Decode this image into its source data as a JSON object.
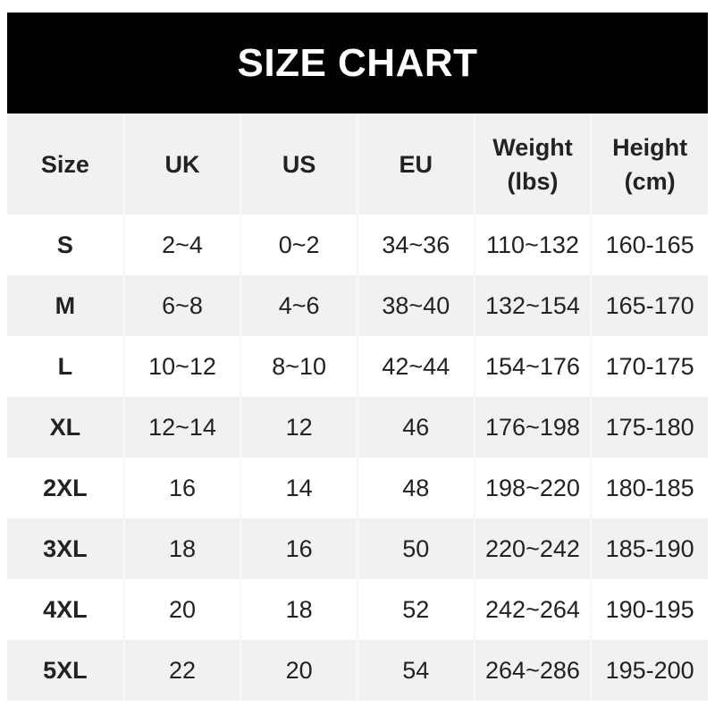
{
  "title": "SIZE CHART",
  "chart_data": {
    "type": "table",
    "title": "SIZE CHART",
    "columns": [
      {
        "line1": "Size",
        "line2": ""
      },
      {
        "line1": "UK",
        "line2": ""
      },
      {
        "line1": "US",
        "line2": ""
      },
      {
        "line1": "EU",
        "line2": ""
      },
      {
        "line1": "Weight",
        "line2": "(lbs)"
      },
      {
        "line1": "Height",
        "line2": "(cm)"
      }
    ],
    "rows": [
      [
        "S",
        "2~4",
        "0~2",
        "34~36",
        "110~132",
        "160-165"
      ],
      [
        "M",
        "6~8",
        "4~6",
        "38~40",
        "132~154",
        "165-170"
      ],
      [
        "L",
        "10~12",
        "8~10",
        "42~44",
        "154~176",
        "170-175"
      ],
      [
        "XL",
        "12~14",
        "12",
        "46",
        "176~198",
        "175-180"
      ],
      [
        "2XL",
        "16",
        "14",
        "48",
        "198~220",
        "180-185"
      ],
      [
        "3XL",
        "18",
        "16",
        "50",
        "220~242",
        "185-190"
      ],
      [
        "4XL",
        "20",
        "18",
        "52",
        "242~264",
        "190-195"
      ],
      [
        "5XL",
        "22",
        "20",
        "54",
        "264~286",
        "195-200"
      ]
    ]
  },
  "colors": {
    "header_bg": "#000000",
    "header_text": "#ffffff",
    "stripe": "#f1f1f1",
    "text": "#222222"
  }
}
